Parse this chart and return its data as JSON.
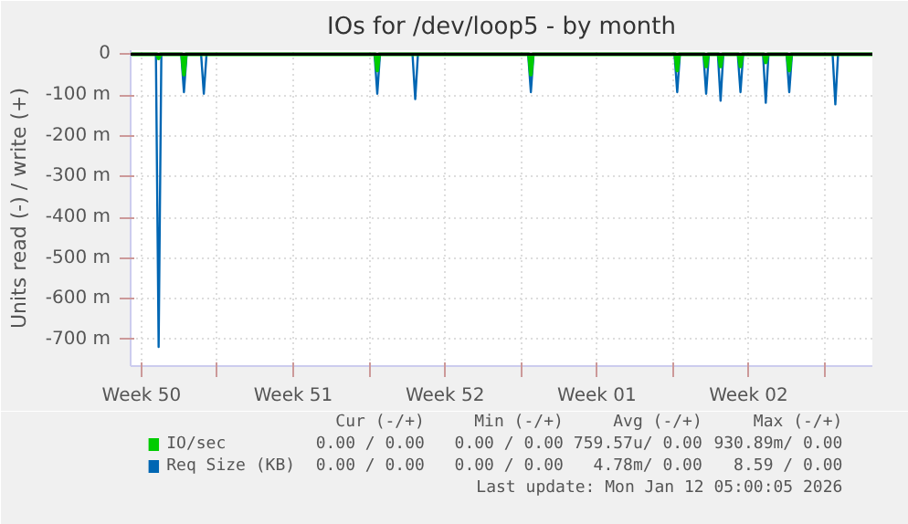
{
  "chart_data": {
    "type": "line",
    "title": "IOs for /dev/loop5 - by month",
    "ylabel": "Units read (-) / write (+)",
    "xlim": [
      "2025-12-11",
      "2026-01-14T05:00"
    ],
    "ylim": [
      -765,
      10
    ],
    "xticks": [
      {
        "value": "2025-12-11T12:00",
        "label": "Week 50"
      },
      {
        "value": "2025-12-15",
        "label": null
      },
      {
        "value": "2025-12-18T12:00",
        "label": "Week 51"
      },
      {
        "value": "2025-12-22",
        "label": null
      },
      {
        "value": "2025-12-25T12:00",
        "label": "Week 52"
      },
      {
        "value": "2025-12-29",
        "label": null
      },
      {
        "value": "2026-01-01T12:00",
        "label": "Week 01"
      },
      {
        "value": "2026-01-05",
        "label": null
      },
      {
        "value": "2026-01-08T12:00",
        "label": "Week 02"
      },
      {
        "value": "2026-01-12",
        "label": null
      }
    ],
    "yticks": [
      {
        "value": 0,
        "label": "0"
      },
      {
        "value": -100,
        "label": "-100 m"
      },
      {
        "value": -200,
        "label": "-200 m"
      },
      {
        "value": -300,
        "label": "-300 m"
      },
      {
        "value": -400,
        "label": "-400 m"
      },
      {
        "value": -500,
        "label": "-500 m"
      },
      {
        "value": -600,
        "label": "-600 m"
      },
      {
        "value": -700,
        "label": "-700 m"
      }
    ],
    "grid": true,
    "legend": "bottom",
    "ref_lines": [
      {
        "axis": "y",
        "value": 0,
        "color": "#000000"
      }
    ],
    "series": [
      {
        "name": "Req Size (KB)",
        "color": "#0066b3",
        "x": [
          "2025-12-11",
          "2025-12-12T04:00",
          "2025-12-12T07:00",
          "2025-12-12T10:00",
          "2025-12-13T08:00",
          "2025-12-13T11:00",
          "2025-12-13T14:00",
          "2025-12-14T06:00",
          "2025-12-14T09:00",
          "2025-12-14T12:00",
          "2025-12-22T06:00",
          "2025-12-22T09:00",
          "2025-12-22T12:00",
          "2025-12-24T00:00",
          "2025-12-24T03:00",
          "2025-12-24T06:00",
          "2025-12-29T08:00",
          "2025-12-29T11:00",
          "2025-12-29T14:00",
          "2026-01-05T02:00",
          "2026-01-05T05:00",
          "2026-01-05T08:00",
          "2026-01-06T10:00",
          "2026-01-06T13:00",
          "2026-01-06T16:00",
          "2026-01-07T02:00",
          "2026-01-07T05:00",
          "2026-01-07T08:00",
          "2026-01-08T00:00",
          "2026-01-08T03:00",
          "2026-01-08T06:00",
          "2026-01-09T04:00",
          "2026-01-09T07:00",
          "2026-01-09T10:00",
          "2026-01-10T06:00",
          "2026-01-10T09:00",
          "2026-01-10T12:00",
          "2026-01-12T09:00",
          "2026-01-12T12:00",
          "2026-01-12T15:00",
          "2026-01-14T05:00"
        ],
        "values": [
          0,
          0,
          -718,
          0,
          0,
          -93,
          0,
          0,
          -97,
          0,
          0,
          -97,
          0,
          0,
          -110,
          0,
          0,
          -93,
          0,
          0,
          -93,
          0,
          0,
          -97,
          0,
          0,
          -114,
          0,
          0,
          -93,
          0,
          0,
          -119,
          0,
          0,
          -93,
          0,
          0,
          -123,
          0,
          0
        ]
      },
      {
        "name": "IO/sec",
        "color": "#00cc00",
        "x": [
          "2025-12-11",
          "2025-12-12T05:00",
          "2025-12-12T07:00",
          "2025-12-12T09:00",
          "2025-12-13T09:00",
          "2025-12-13T11:00",
          "2025-12-13T13:00",
          "2025-12-22T07:00",
          "2025-12-22T09:00",
          "2025-12-22T11:00",
          "2025-12-29T09:00",
          "2025-12-29T11:00",
          "2025-12-29T13:00",
          "2026-01-05T03:00",
          "2026-01-05T05:00",
          "2026-01-05T07:00",
          "2026-01-06T11:00",
          "2026-01-06T13:00",
          "2026-01-06T15:00",
          "2026-01-07T03:00",
          "2026-01-07T05:00",
          "2026-01-07T07:00",
          "2026-01-08T01:00",
          "2026-01-08T03:00",
          "2026-01-08T05:00",
          "2026-01-09T05:00",
          "2026-01-09T07:00",
          "2026-01-09T09:00",
          "2026-01-10T07:00",
          "2026-01-10T09:00",
          "2026-01-10T11:00",
          "2026-01-14T05:00"
        ],
        "values": [
          0,
          0,
          -10,
          0,
          0,
          -50,
          0,
          0,
          -40,
          0,
          0,
          -50,
          0,
          0,
          -40,
          0,
          0,
          -30,
          0,
          0,
          -30,
          0,
          0,
          -30,
          0,
          0,
          -20,
          0,
          0,
          -40,
          0,
          0
        ]
      }
    ],
    "annotations": [
      "Cur (-/+)",
      "Min (-/+)",
      "Avg (-/+)",
      "Max (-/+)",
      "0.00 / 0.00",
      "0.00 / 0.00",
      "759.57u/ 0.00",
      "930.89m/ 0.00",
      "0.00 / 0.00",
      "0.00 / 0.00",
      "4.78m/ 0.00",
      "8.59 / 0.00",
      "Last update: Mon Jan 12 05:00:05 2026"
    ]
  }
}
